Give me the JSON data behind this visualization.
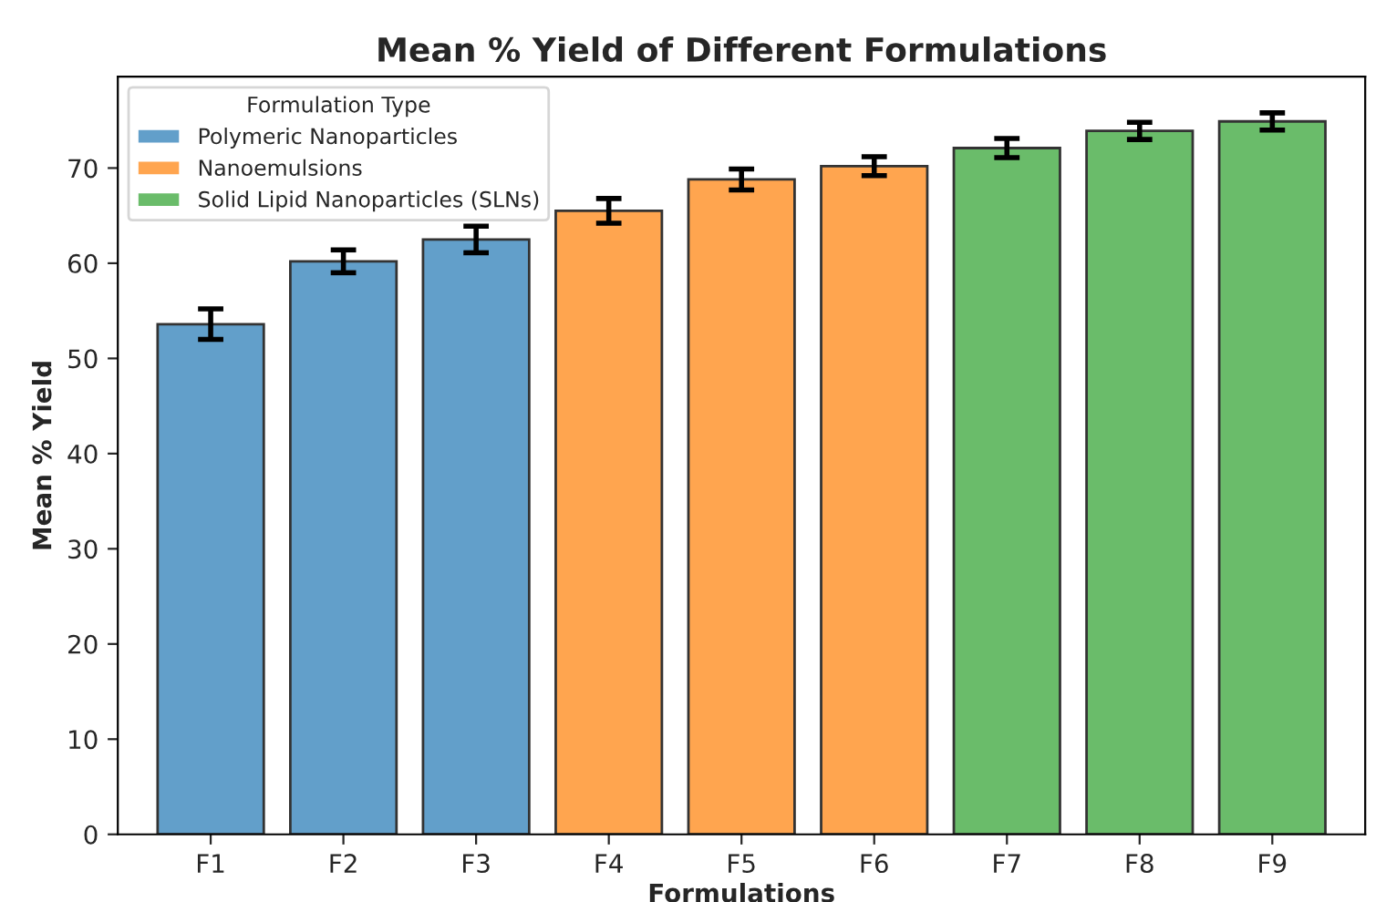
{
  "chart_data": {
    "type": "bar",
    "title": "Mean % Yield of Different Formulations",
    "xlabel": "Formulations",
    "ylabel": "Mean % Yield",
    "legend_title": "Formulation Type",
    "legend": "top left",
    "grid": false,
    "categories": [
      "F1",
      "F2",
      "F3",
      "F4",
      "F5",
      "F6",
      "F7",
      "F8",
      "F9"
    ],
    "series": [
      {
        "name": "Polymeric Nanoparticles",
        "color": "#629fca",
        "values": [
          53.6,
          60.2,
          62.5,
          null,
          null,
          null,
          null,
          null,
          null
        ],
        "errors": [
          1.6,
          1.2,
          1.4,
          null,
          null,
          null,
          null,
          null,
          null
        ]
      },
      {
        "name": "Nanoemulsions",
        "color": "#ffa54f",
        "values": [
          null,
          null,
          null,
          65.5,
          68.8,
          70.2,
          null,
          null,
          null
        ],
        "errors": [
          null,
          null,
          null,
          1.3,
          1.1,
          1.0,
          null,
          null,
          null
        ]
      },
      {
        "name": "Solid Lipid Nanoparticles (SLNs)",
        "color": "#6abc6a",
        "values": [
          null,
          null,
          null,
          null,
          null,
          null,
          72.1,
          73.9,
          74.9
        ],
        "errors": [
          null,
          null,
          null,
          null,
          null,
          null,
          1.0,
          0.9,
          0.9
        ]
      }
    ],
    "ylim": [
      0,
      79.6
    ],
    "yticks": [
      0,
      10,
      20,
      30,
      40,
      50,
      60,
      70
    ]
  }
}
